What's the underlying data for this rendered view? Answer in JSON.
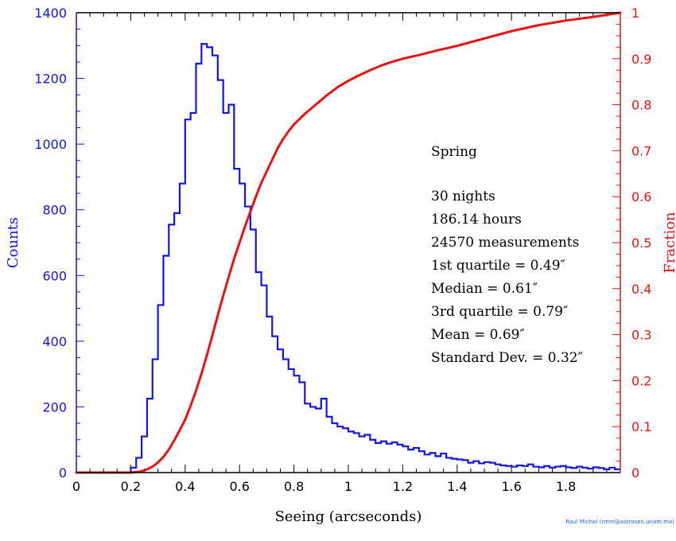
{
  "chart_data": {
    "type": "bar",
    "subtype": "histogram-with-cumulative-line",
    "xlabel": "Seeing (arcseconds)",
    "ylabel_left": "Counts",
    "ylabel_right": "Fraction",
    "xlim": [
      0,
      2.0
    ],
    "ylim_left": [
      0,
      1400
    ],
    "ylim_right": [
      0,
      1.0
    ],
    "x_ticks": [
      "0",
      "0.2",
      "0.4",
      "0.6",
      "0.8",
      "1",
      "1.2",
      "1.4",
      "1.6",
      "1.8"
    ],
    "y_ticks_left": [
      "0",
      "200",
      "400",
      "600",
      "800",
      "1000",
      "1200",
      "1400"
    ],
    "y_ticks_right": [
      "0",
      "0.1",
      "0.2",
      "0.3",
      "0.4",
      "0.5",
      "0.6",
      "0.7",
      "0.8",
      "0.9",
      "1"
    ],
    "grid": false,
    "colors": {
      "histogram": "#1414e6",
      "cumulative": "#e61414",
      "text": "#000000"
    },
    "histogram": {
      "bin_width": 0.02,
      "bin_starts": [
        0.0,
        0.02,
        0.04,
        0.06,
        0.08,
        0.1,
        0.12,
        0.14,
        0.16,
        0.18,
        0.2,
        0.22,
        0.24,
        0.26,
        0.28,
        0.3,
        0.32,
        0.34,
        0.36,
        0.38,
        0.4,
        0.42,
        0.44,
        0.46,
        0.48,
        0.5,
        0.52,
        0.54,
        0.56,
        0.58,
        0.6,
        0.62,
        0.64,
        0.66,
        0.68,
        0.7,
        0.72,
        0.74,
        0.76,
        0.78,
        0.8,
        0.82,
        0.84,
        0.86,
        0.88,
        0.9,
        0.92,
        0.94,
        0.96,
        0.98,
        1.0,
        1.02,
        1.04,
        1.06,
        1.08,
        1.1,
        1.12,
        1.14,
        1.16,
        1.18,
        1.2,
        1.22,
        1.24,
        1.26,
        1.28,
        1.3,
        1.32,
        1.34,
        1.36,
        1.38,
        1.4,
        1.42,
        1.44,
        1.46,
        1.48,
        1.5,
        1.52,
        1.54,
        1.56,
        1.58,
        1.6,
        1.62,
        1.64,
        1.66,
        1.68,
        1.7,
        1.72,
        1.74,
        1.76,
        1.78,
        1.8,
        1.82,
        1.84,
        1.86,
        1.88,
        1.9,
        1.92,
        1.94,
        1.96,
        1.98
      ],
      "counts": [
        0,
        0,
        0,
        0,
        0,
        0,
        0,
        0,
        0,
        0,
        15,
        45,
        110,
        225,
        345,
        510,
        660,
        755,
        790,
        880,
        1075,
        1095,
        1245,
        1305,
        1295,
        1270,
        1195,
        1095,
        1120,
        925,
        880,
        810,
        740,
        610,
        570,
        475,
        415,
        375,
        345,
        315,
        295,
        275,
        210,
        200,
        195,
        225,
        170,
        150,
        140,
        135,
        125,
        120,
        110,
        115,
        100,
        90,
        95,
        88,
        92,
        85,
        80,
        70,
        75,
        65,
        55,
        60,
        50,
        58,
        45,
        42,
        40,
        38,
        30,
        35,
        28,
        32,
        30,
        25,
        22,
        20,
        18,
        22,
        20,
        25,
        18,
        16,
        20,
        15,
        18,
        20,
        16,
        14,
        18,
        15,
        12,
        16,
        14,
        10,
        15,
        10
      ]
    },
    "cumulative": {
      "name": "Fraction",
      "x": [
        0.0,
        0.2,
        0.22,
        0.24,
        0.26,
        0.28,
        0.3,
        0.32,
        0.34,
        0.36,
        0.38,
        0.4,
        0.42,
        0.44,
        0.46,
        0.48,
        0.5,
        0.52,
        0.54,
        0.56,
        0.58,
        0.6,
        0.62,
        0.64,
        0.66,
        0.68,
        0.7,
        0.72,
        0.74,
        0.76,
        0.78,
        0.8,
        0.84,
        0.88,
        0.92,
        0.96,
        1.0,
        1.04,
        1.08,
        1.12,
        1.16,
        1.2,
        1.26,
        1.32,
        1.4,
        1.5,
        1.6,
        1.7,
        1.8,
        1.9,
        2.0
      ],
      "y": [
        0.0,
        0.0,
        0.001,
        0.003,
        0.007,
        0.013,
        0.022,
        0.034,
        0.05,
        0.07,
        0.092,
        0.115,
        0.145,
        0.178,
        0.215,
        0.255,
        0.298,
        0.342,
        0.385,
        0.425,
        0.465,
        0.5,
        0.535,
        0.568,
        0.6,
        0.63,
        0.655,
        0.68,
        0.705,
        0.725,
        0.742,
        0.757,
        0.78,
        0.8,
        0.82,
        0.838,
        0.852,
        0.864,
        0.875,
        0.885,
        0.893,
        0.9,
        0.908,
        0.917,
        0.928,
        0.944,
        0.96,
        0.973,
        0.983,
        0.991,
        1.0
      ]
    },
    "annotations": [
      "Spring",
      "30 nights",
      "186.14 hours",
      "24570 measurements",
      "1st quartile = 0.49″",
      "Median = 0.61″",
      "3rd quartile = 0.79″",
      "Mean = 0.69″",
      "Standard Dev. = 0.32″"
    ]
  },
  "credit": "Raul Michel (rmm@astrosen.unam.mx)"
}
